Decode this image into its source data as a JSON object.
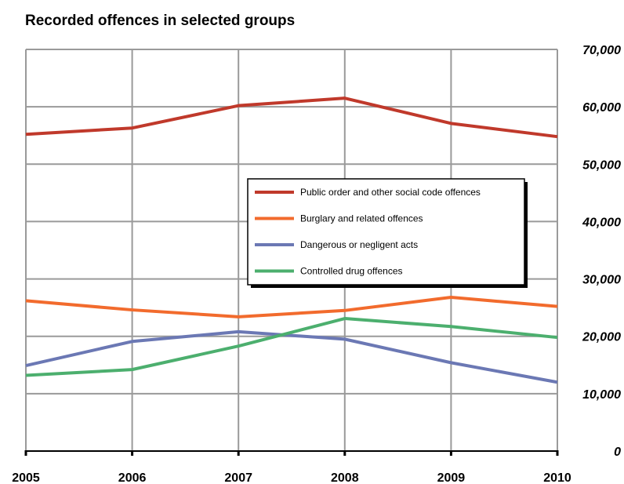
{
  "chart_data": {
    "type": "line",
    "title": "Recorded offences in selected groups",
    "xlabel": "",
    "ylabel": "",
    "categories": [
      "2005",
      "2006",
      "2007",
      "2008",
      "2009",
      "2010"
    ],
    "ylim": [
      0,
      70000
    ],
    "yticks": [
      0,
      10000,
      20000,
      30000,
      40000,
      50000,
      60000,
      70000
    ],
    "ytick_labels": [
      "0",
      "10,000",
      "20,000",
      "30,000",
      "40,000",
      "50,000",
      "60,000",
      "70,000"
    ],
    "y_axis_side": "right",
    "grid": true,
    "legend_position": "center-right",
    "series": [
      {
        "name": "Public order and other social code offences",
        "color": "#c0392b",
        "values": [
          55200,
          56300,
          60200,
          61500,
          57100,
          54800
        ]
      },
      {
        "name": "Burglary and related offences",
        "color": "#f26b2d",
        "values": [
          26200,
          24600,
          23400,
          24500,
          26800,
          25200
        ]
      },
      {
        "name": "Dangerous or negligent acts",
        "color": "#6b78b4",
        "values": [
          14900,
          19100,
          20800,
          19500,
          15400,
          12000
        ]
      },
      {
        "name": "Controlled drug offences",
        "color": "#4caf6e",
        "values": [
          13200,
          14200,
          18300,
          23100,
          21700,
          19800
        ]
      }
    ]
  }
}
